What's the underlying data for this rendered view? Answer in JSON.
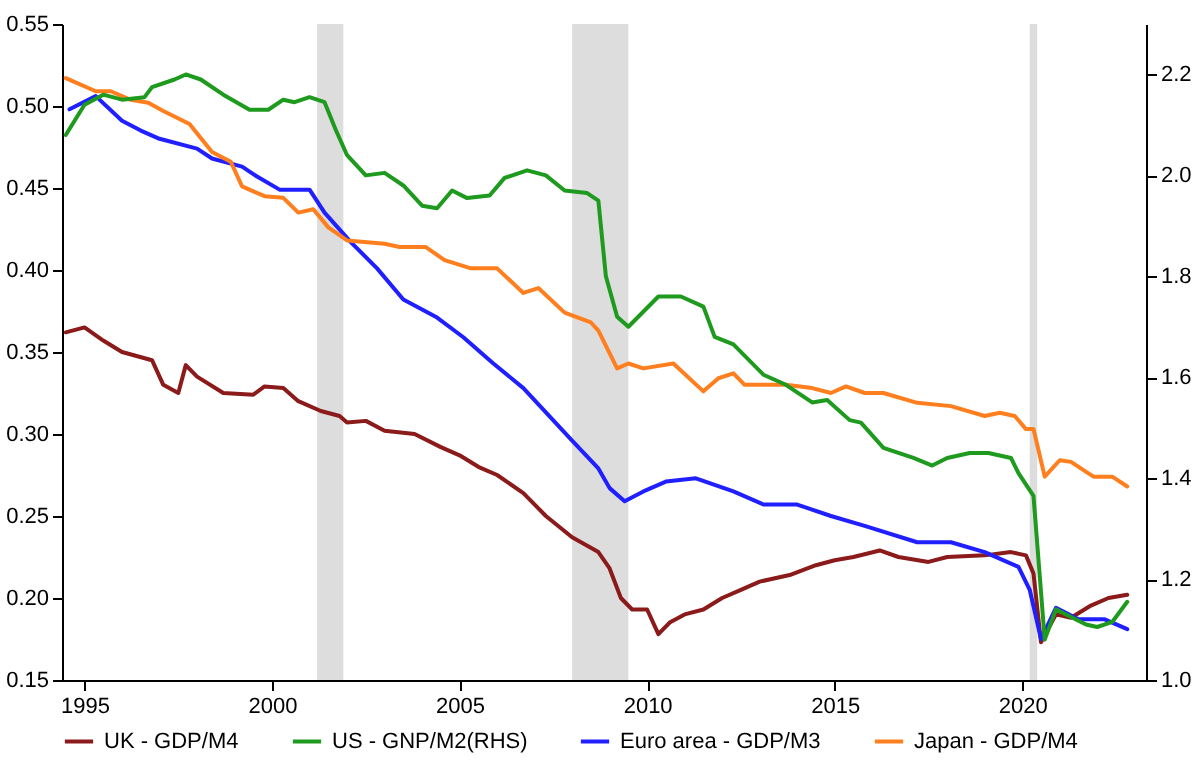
{
  "chart_data": {
    "type": "line",
    "xlim": [
      1994.4,
      2023.3
    ],
    "xticks": [
      1995,
      2000,
      2005,
      2010,
      2015,
      2020
    ],
    "ylim": [
      0.15,
      0.55
    ],
    "yticks": [
      {
        "value": 0.15,
        "label": "0.15"
      },
      {
        "value": 0.2,
        "label": "0.20"
      },
      {
        "value": 0.25,
        "label": "0.25"
      },
      {
        "value": 0.3,
        "label": "0.30"
      },
      {
        "value": 0.35,
        "label": "0.35"
      },
      {
        "value": 0.4,
        "label": "0.40"
      },
      {
        "value": 0.45,
        "label": "0.45"
      },
      {
        "value": 0.5,
        "label": "0.50"
      },
      {
        "value": 0.55,
        "label": "0.55"
      }
    ],
    "y2lim": [
      1.0,
      2.3
    ],
    "y2ticks": [
      {
        "value": 1.0,
        "label": "1.0"
      },
      {
        "value": 1.2,
        "label": "1.2"
      },
      {
        "value": 1.4,
        "label": "1.4"
      },
      {
        "value": 1.6,
        "label": "1.6"
      },
      {
        "value": 1.8,
        "label": "1.8"
      },
      {
        "value": 2.0,
        "label": "2.0"
      },
      {
        "value": 2.2,
        "label": "2.2"
      }
    ],
    "grid": false,
    "legend": "bottom",
    "bands": [
      {
        "axis": "x",
        "from": 2001.2,
        "to": 2001.9,
        "color": "#dddddd"
      },
      {
        "axis": "x",
        "from": 2008.0,
        "to": 2009.5,
        "color": "#dddddd"
      },
      {
        "axis": "x",
        "from": 2020.2,
        "to": 2020.4,
        "color": "#dddddd"
      }
    ],
    "series": [
      {
        "name": "UK - GDP/M4",
        "color": "#8b1a1a",
        "x": [
          1994.5,
          1995,
          1995.5,
          1996,
          1996.8,
          1997.1,
          1997.5,
          1997.7,
          1998,
          1998.7,
          1999.5,
          1999.8,
          2000.3,
          2000.7,
          2001.3,
          2001.8,
          2002,
          2002.5,
          2003,
          2003.8,
          2004.5,
          2005,
          2005.5,
          2006,
          2006.7,
          2007.3,
          2008,
          2008.7,
          2009,
          2009.3,
          2009.6,
          2010,
          2010.3,
          2010.6,
          2011,
          2011.5,
          2012,
          2012.5,
          2013,
          2013.8,
          2014.5,
          2015,
          2015.5,
          2016.2,
          2016.7,
          2017.5,
          2018,
          2019,
          2019.7,
          2020.1,
          2020.3,
          2020.5,
          2020.9,
          2021.3,
          2021.8,
          2022.3,
          2022.8
        ],
        "values": [
          0.362,
          0.365,
          0.357,
          0.35,
          0.345,
          0.33,
          0.325,
          0.342,
          0.335,
          0.325,
          0.324,
          0.329,
          0.328,
          0.32,
          0.314,
          0.311,
          0.307,
          0.308,
          0.302,
          0.3,
          0.292,
          0.287,
          0.28,
          0.275,
          0.264,
          0.25,
          0.237,
          0.228,
          0.218,
          0.2,
          0.193,
          0.193,
          0.178,
          0.185,
          0.19,
          0.193,
          0.2,
          0.205,
          0.21,
          0.214,
          0.22,
          0.223,
          0.225,
          0.229,
          0.225,
          0.222,
          0.225,
          0.226,
          0.228,
          0.226,
          0.215,
          0.173,
          0.19,
          0.188,
          0.195,
          0.2,
          0.202
        ]
      },
      {
        "name": "US - GNP/M2(RHS)",
        "color": "#1e9a1e",
        "axis": "y2",
        "x": [
          1994.5,
          1995,
          1995.5,
          1996,
          1996.6,
          1996.8,
          1997.4,
          1997.7,
          1998.1,
          1998.7,
          1999.4,
          1999.9,
          2000.3,
          2000.6,
          2001,
          2001.4,
          2001.7,
          2002,
          2002.5,
          2003,
          2003.5,
          2004,
          2004.4,
          2004.8,
          2005.2,
          2005.8,
          2006.2,
          2006.8,
          2007.3,
          2007.8,
          2008.4,
          2008.7,
          2008.9,
          2009.2,
          2009.5,
          2010.3,
          2010.9,
          2011.5,
          2011.8,
          2012.3,
          2013.1,
          2013.7,
          2014.4,
          2014.8,
          2015.4,
          2015.7,
          2016.3,
          2017.1,
          2017.6,
          2018,
          2018.6,
          2019.1,
          2019.7,
          2019.9,
          2020.3,
          2020.6,
          2020.9,
          2021.3,
          2021.7,
          2022,
          2022.4,
          2022.8
        ],
        "values": [
          2.08,
          2.14,
          2.16,
          2.15,
          2.155,
          2.175,
          2.19,
          2.2,
          2.19,
          2.16,
          2.13,
          2.13,
          2.15,
          2.145,
          2.155,
          2.145,
          2.09,
          2.04,
          2.0,
          2.005,
          1.98,
          1.94,
          1.935,
          1.97,
          1.955,
          1.96,
          1.995,
          2.01,
          2.0,
          1.97,
          1.965,
          1.95,
          1.8,
          1.72,
          1.7,
          1.76,
          1.76,
          1.74,
          1.68,
          1.665,
          1.605,
          1.585,
          1.55,
          1.555,
          1.515,
          1.51,
          1.46,
          1.44,
          1.425,
          1.44,
          1.45,
          1.45,
          1.44,
          1.41,
          1.365,
          1.08,
          1.14,
          1.125,
          1.11,
          1.105,
          1.115,
          1.155
        ]
      },
      {
        "name": "Euro area - GDP/M3",
        "color": "#1f1fff",
        "x": [
          1994.6,
          1995.3,
          1996,
          1996.5,
          1997,
          1998,
          1998.4,
          1999.2,
          1999.6,
          2000.2,
          2001,
          2001.4,
          2002.1,
          2002.8,
          2003.5,
          2004.4,
          2005.1,
          2005.9,
          2006.7,
          2008,
          2008.7,
          2009,
          2009.4,
          2009.9,
          2010.5,
          2011.3,
          2012.3,
          2013.1,
          2014,
          2014.9,
          2015.8,
          2017.2,
          2018.1,
          2019,
          2019.9,
          2020.2,
          2020.5,
          2020.9,
          2021.5,
          2022.2,
          2022.8
        ],
        "values": [
          0.498,
          0.506,
          0.491,
          0.485,
          0.48,
          0.474,
          0.468,
          0.463,
          0.457,
          0.449,
          0.449,
          0.435,
          0.417,
          0.401,
          0.382,
          0.371,
          0.359,
          0.343,
          0.328,
          0.296,
          0.279,
          0.267,
          0.259,
          0.265,
          0.271,
          0.273,
          0.265,
          0.257,
          0.257,
          0.25,
          0.244,
          0.234,
          0.234,
          0.228,
          0.219,
          0.205,
          0.175,
          0.194,
          0.187,
          0.187,
          0.181
        ]
      },
      {
        "name": "Japan - GDP/M4",
        "color": "#ff7f1f",
        "x": [
          1994.5,
          1995.3,
          1995.7,
          1996.2,
          1996.7,
          1997.1,
          1997.8,
          1998.4,
          1998.9,
          1999.2,
          1999.8,
          2000.3,
          2000.7,
          2001.1,
          2001.5,
          2002,
          2003,
          2003.4,
          2004.1,
          2004.6,
          2005.3,
          2006,
          2006.7,
          2007.1,
          2007.8,
          2008.5,
          2008.7,
          2009.2,
          2009.5,
          2009.9,
          2010.7,
          2011.5,
          2011.9,
          2012.3,
          2012.6,
          2013.7,
          2014.4,
          2014.9,
          2015.3,
          2015.8,
          2016.3,
          2017.2,
          2018.1,
          2019,
          2019.4,
          2019.8,
          2020.1,
          2020.3,
          2020.6,
          2021,
          2021.3,
          2021.9,
          2022.4,
          2022.8
        ],
        "values": [
          0.517,
          0.509,
          0.509,
          0.504,
          0.502,
          0.497,
          0.489,
          0.472,
          0.466,
          0.451,
          0.445,
          0.444,
          0.435,
          0.437,
          0.426,
          0.418,
          0.416,
          0.414,
          0.414,
          0.406,
          0.401,
          0.401,
          0.386,
          0.389,
          0.374,
          0.368,
          0.363,
          0.34,
          0.343,
          0.34,
          0.343,
          0.326,
          0.334,
          0.337,
          0.33,
          0.33,
          0.328,
          0.325,
          0.329,
          0.325,
          0.325,
          0.319,
          0.317,
          0.311,
          0.313,
          0.311,
          0.303,
          0.303,
          0.274,
          0.284,
          0.283,
          0.274,
          0.274,
          0.268
        ]
      }
    ]
  }
}
